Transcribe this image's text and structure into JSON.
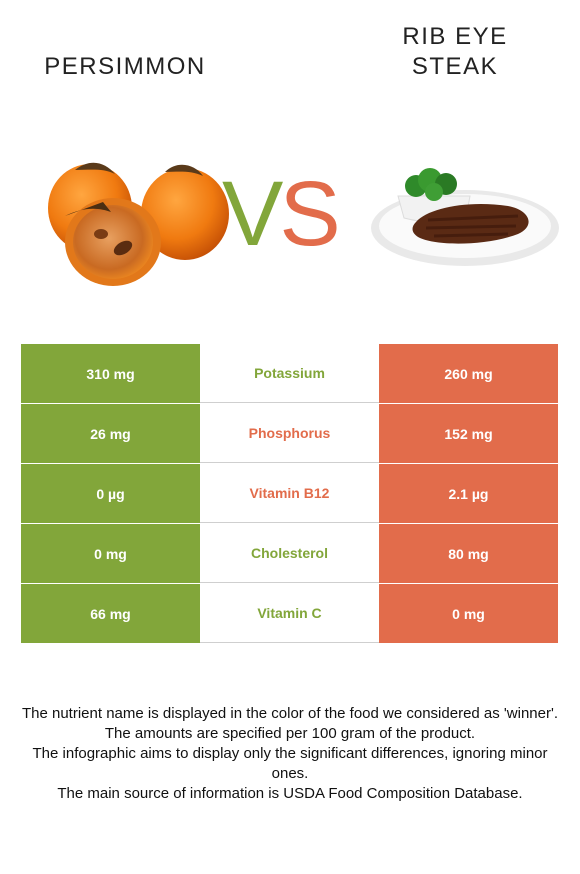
{
  "left_food": {
    "name": "PERSIMMON",
    "color": "#82a63a",
    "image_icon": "persimmon-illustration-icon"
  },
  "right_food": {
    "name_line1": "RIB EYE",
    "name_line2": "STEAK",
    "color": "#e26c4b",
    "image_icon": "steak-plate-illustration-icon"
  },
  "vs": {
    "v": "V",
    "s": "S"
  },
  "rows": [
    {
      "left": "310 mg",
      "nutrient": "Potassium",
      "right": "260 mg",
      "winner_color": "#82a63a"
    },
    {
      "left": "26 mg",
      "nutrient": "Phosphorus",
      "right": "152 mg",
      "winner_color": "#e26c4b"
    },
    {
      "left": "0 µg",
      "nutrient": "Vitamin B12",
      "right": "2.1 µg",
      "winner_color": "#e26c4b"
    },
    {
      "left": "0 mg",
      "nutrient": "Cholesterol",
      "right": "80 mg",
      "winner_color": "#82a63a"
    },
    {
      "left": "66 mg",
      "nutrient": "Vitamin C",
      "right": "0 mg",
      "winner_color": "#82a63a"
    }
  ],
  "footnotes": [
    "The nutrient name is displayed in the color of the food we considered as 'winner'.",
    "The amounts are specified per 100 gram of the product.",
    "The infographic aims to display only the significant differences, ignoring minor ones.",
    "The main source of information is USDA Food Composition Database."
  ]
}
